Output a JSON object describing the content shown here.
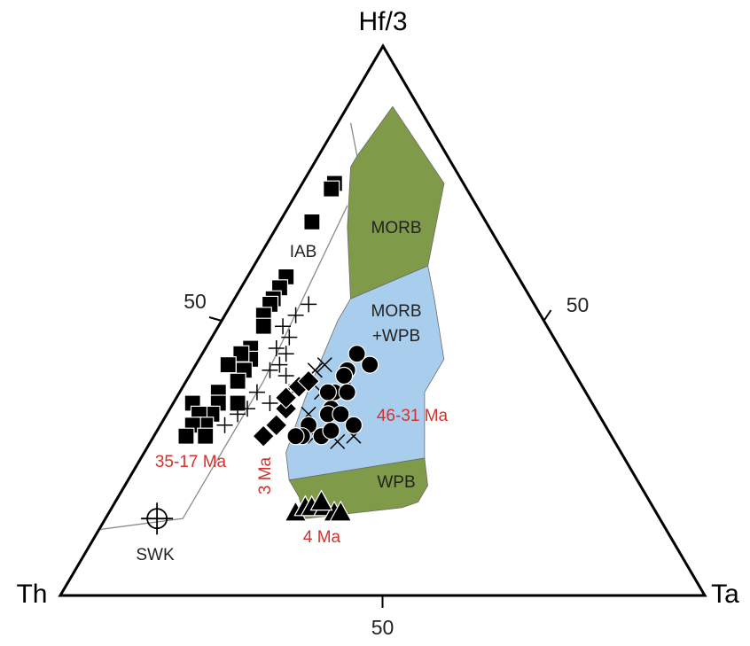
{
  "chart_data": {
    "type": "ternary",
    "axes": [
      {
        "name": "Hf/3",
        "ticks": [
          50
        ]
      },
      {
        "name": "Th",
        "ticks": [
          50
        ]
      },
      {
        "name": "Ta",
        "ticks": [
          50
        ]
      }
    ],
    "fields": [
      {
        "label": [
          "MORB"
        ],
        "color": "#7f9a48",
        "points": [
          [
            4,
            89,
            7
          ],
          [
            3,
            75,
            22
          ],
          [
            13,
            60,
            27
          ],
          [
            28,
            54,
            18
          ],
          [
            22,
            67,
            11
          ],
          [
            16,
            78,
            6
          ],
          [
            14,
            80,
            6
          ]
        ]
      },
      {
        "label": [
          "MORB",
          "+WPB"
        ],
        "color": "#a9cdec",
        "points": [
          [
            28,
            54,
            18
          ],
          [
            13,
            60,
            27
          ],
          [
            15,
            54,
            31
          ],
          [
            19,
            43,
            38
          ],
          [
            25,
            37,
            38
          ],
          [
            31,
            25,
            44
          ],
          [
            54,
            21,
            25
          ],
          [
            52,
            26,
            22
          ],
          [
            44,
            36,
            20
          ],
          [
            32,
            50,
            18
          ]
        ]
      },
      {
        "label": [
          "WPB"
        ],
        "color": "#7f9a48",
        "points": [
          [
            54,
            21,
            25
          ],
          [
            31,
            25,
            44
          ],
          [
            33,
            20,
            47
          ],
          [
            36,
            17,
            47
          ],
          [
            39,
            16,
            45
          ],
          [
            55,
            14,
            31
          ],
          [
            54,
            18,
            28
          ]
        ]
      }
    ],
    "lines": [
      [
        [
          12,
          86,
          2
        ],
        [
          14,
          80,
          6
        ]
      ],
      [
        [
          20,
          71,
          9
        ],
        [
          49,
          39,
          12
        ],
        [
          74,
          14,
          12
        ],
        [
          88,
          12,
          0
        ]
      ]
    ],
    "line_color": "#8a8a8a",
    "annotations": [
      "IAB"
    ],
    "series": [
      {
        "name": "35-17 Ma",
        "name_color": "#d2312e",
        "marker": "square",
        "color": "#000000",
        "points": [
          [
            20,
            75,
            5
          ],
          [
            21,
            74,
            5
          ],
          [
            27,
            68,
            5
          ],
          [
            36,
            58,
            6
          ],
          [
            38,
            56,
            6
          ],
          [
            40,
            54,
            6
          ],
          [
            41,
            53,
            6
          ],
          [
            43,
            51,
            6
          ],
          [
            44,
            49,
            7
          ],
          [
            48,
            45,
            7
          ],
          [
            49,
            43,
            8
          ],
          [
            50,
            44,
            6
          ],
          [
            51,
            41,
            8
          ],
          [
            53,
            42,
            5
          ],
          [
            53,
            39,
            8
          ],
          [
            57,
            37,
            6
          ],
          [
            58,
            35,
            7
          ],
          [
            60,
            33,
            7
          ],
          [
            62,
            35,
            3
          ],
          [
            62,
            33,
            5
          ],
          [
            62,
            31,
            7
          ],
          [
            64,
            31,
            5
          ],
          [
            66,
            29,
            5
          ],
          [
            63,
            29,
            8
          ],
          [
            55,
            35,
            10
          ]
        ]
      },
      {
        "marker": "plus",
        "color": "#000000",
        "points": [
          [
            35,
            53,
            12
          ],
          [
            38,
            51,
            11
          ],
          [
            41,
            49,
            10
          ],
          [
            41,
            47,
            12
          ],
          [
            44,
            45,
            11
          ],
          [
            43,
            44,
            13
          ],
          [
            45,
            42,
            13
          ],
          [
            47,
            41,
            12
          ],
          [
            45,
            40,
            15
          ],
          [
            51,
            37,
            12
          ],
          [
            50,
            35,
            15
          ],
          [
            54,
            34,
            12
          ],
          [
            56,
            33,
            11
          ],
          [
            46,
            37,
            17
          ],
          [
            59,
            31,
            10
          ]
        ]
      },
      {
        "marker": "x",
        "color": "#000000",
        "points": [
          [
            40,
            41,
            19
          ],
          [
            41,
            37,
            22
          ],
          [
            45,
            33,
            22
          ],
          [
            43,
            28,
            29
          ],
          [
            40,
            29,
            31
          ],
          [
            46,
            29,
            25
          ],
          [
            36,
            39,
            25
          ],
          [
            38,
            42,
            20
          ]
        ]
      },
      {
        "name": "3 Ma",
        "name_color": "#d2312e",
        "marker": "diamond",
        "color": "#000000",
        "points": [
          [
            54,
            29,
            17
          ],
          [
            51,
            31,
            18
          ],
          [
            48,
            34,
            18
          ],
          [
            47,
            36,
            17
          ],
          [
            44,
            38,
            18
          ],
          [
            42,
            39,
            19
          ]
        ]
      },
      {
        "name": "46-31 Ma",
        "name_color": "#d2312e",
        "marker": "circle",
        "color": "#000000",
        "points": [
          [
            32,
            44,
            24
          ],
          [
            31,
            42,
            27
          ],
          [
            35,
            41,
            24
          ],
          [
            36,
            40,
            24
          ],
          [
            39,
            37,
            24
          ],
          [
            37,
            37,
            26
          ],
          [
            41,
            34,
            25
          ],
          [
            42,
            33,
            25
          ],
          [
            40,
            33,
            27
          ],
          [
            39,
            31,
            30
          ],
          [
            46,
            31,
            23
          ],
          [
            45,
            29,
            26
          ],
          [
            48,
            29,
            23
          ],
          [
            49,
            29,
            22
          ],
          [
            43,
            30,
            27
          ],
          [
            40,
            37,
            23
          ]
        ]
      },
      {
        "name": "4 Ma",
        "name_color": "#d2312e",
        "marker": "triangle",
        "color": "#000000",
        "points": [
          [
            56,
            15,
            29
          ],
          [
            54,
            16,
            30
          ],
          [
            53,
            16,
            31
          ],
          [
            51,
            16,
            33
          ],
          [
            50,
            15,
            35
          ],
          [
            49,
            15,
            36
          ],
          [
            51,
            17,
            32
          ]
        ]
      },
      {
        "name": "SWK",
        "name_color": "#222222",
        "marker": "crosshair",
        "color": "#000000",
        "points": [
          [
            78,
            14,
            8
          ]
        ]
      }
    ]
  }
}
